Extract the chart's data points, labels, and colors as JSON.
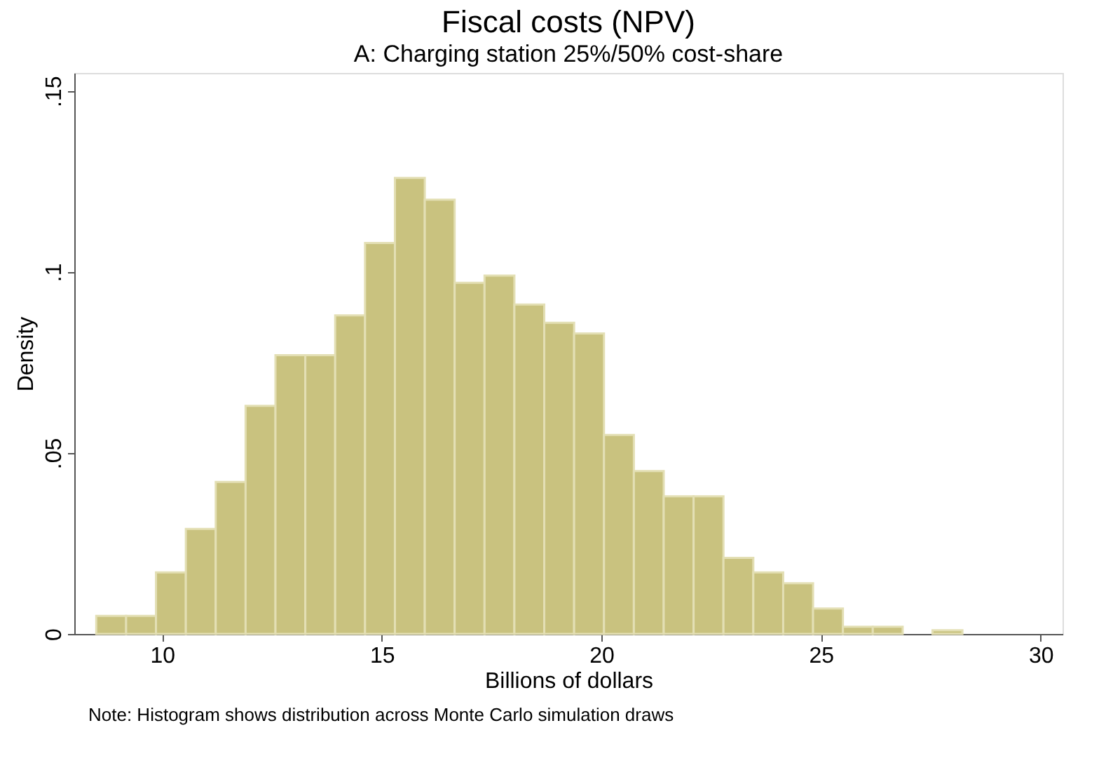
{
  "chart_data": {
    "type": "histogram",
    "title": "Fiscal costs (NPV)",
    "subtitle": "A: Charging station 25%/50% cost-share",
    "xlabel": "Billions of dollars",
    "ylabel": "Density",
    "annotations": [
      "Note: Histogram shows distribution across Monte Carlo simulation draws"
    ],
    "bins": [
      8.5,
      9.18,
      9.86,
      10.54,
      11.22,
      11.9,
      12.58,
      13.26,
      13.94,
      14.62,
      15.3,
      15.98,
      16.66,
      17.34,
      18.02,
      18.7,
      19.38,
      20.06,
      20.74,
      21.42,
      22.1,
      22.78,
      23.46,
      24.14,
      24.82,
      25.5,
      26.18,
      26.86,
      27.54,
      28.22
    ],
    "values": [
      0.005,
      0.005,
      0.017,
      0.029,
      0.042,
      0.063,
      0.077,
      0.077,
      0.088,
      0.108,
      0.126,
      0.12,
      0.097,
      0.099,
      0.091,
      0.086,
      0.083,
      0.055,
      0.045,
      0.038,
      0.038,
      0.021,
      0.017,
      0.014,
      0.007,
      0.002,
      0.002,
      null,
      0.001
    ],
    "color": "#c9c27f",
    "xlim": [
      8,
      30.5
    ],
    "xticks": [
      10,
      15,
      20,
      25,
      30
    ],
    "ylim": [
      0,
      0.155
    ],
    "yticks": [
      {
        "value": 0,
        "label": "0"
      },
      {
        "value": 0.05,
        "label": ".05"
      },
      {
        "value": 0.1,
        "label": ".1"
      },
      {
        "value": 0.15,
        "label": ".15"
      }
    ],
    "grid": false
  }
}
